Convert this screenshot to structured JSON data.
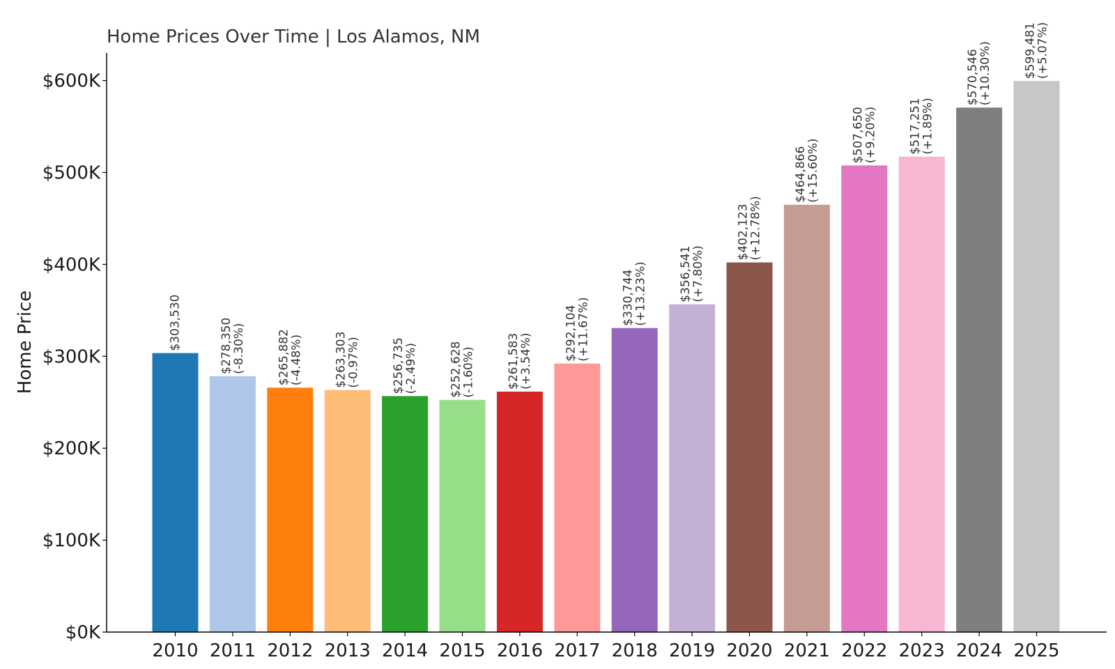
{
  "chart_data": {
    "type": "bar",
    "title": "Home Prices Over Time | Los Alamos, NM",
    "xlabel": "",
    "ylabel": "Home Price",
    "ylim": [
      0,
      630000
    ],
    "grid": false,
    "yticks": [
      0,
      100000,
      200000,
      300000,
      400000,
      500000,
      600000
    ],
    "ytick_labels": [
      "$0K",
      "$100K",
      "$200K",
      "$300K",
      "$400K",
      "$500K",
      "$600K"
    ],
    "categories": [
      "2010",
      "2011",
      "2012",
      "2013",
      "2014",
      "2015",
      "2016",
      "2017",
      "2018",
      "2019",
      "2020",
      "2021",
      "2022",
      "2023",
      "2024",
      "2025"
    ],
    "values": [
      303530,
      278350,
      265882,
      263303,
      256735,
      252628,
      261583,
      292104,
      330744,
      356541,
      402123,
      464866,
      507650,
      517251,
      570546,
      599481
    ],
    "value_labels": [
      "$303,530",
      "$278,350",
      "$265,882",
      "$263,303",
      "$256,735",
      "$252,628",
      "$261,583",
      "$292,104",
      "$330,744",
      "$356,541",
      "$402,123",
      "$464,866",
      "$507,650",
      "$517,251",
      "$570,546",
      "$599,481"
    ],
    "change_labels": [
      "",
      "(-8.30%)",
      "(-4.48%)",
      "(-0.97%)",
      "(-2.49%)",
      "(-1.60%)",
      "(+3.54%)",
      "(+11.67%)",
      "(+13.23%)",
      "(+7.80%)",
      "(+12.78%)",
      "(+15.60%)",
      "(+9.20%)",
      "(+1.89%)",
      "(+10.30%)",
      "(+5.07%)"
    ],
    "colors": [
      "#1f77b4",
      "#aec7e8",
      "#ff7f0e",
      "#ffbb78",
      "#2ca02c",
      "#98df8a",
      "#d62728",
      "#ff9896",
      "#9467bd",
      "#c5b0d5",
      "#8c564b",
      "#c49c94",
      "#e377c2",
      "#f7b6d2",
      "#7f7f7f",
      "#c7c7c7"
    ]
  }
}
